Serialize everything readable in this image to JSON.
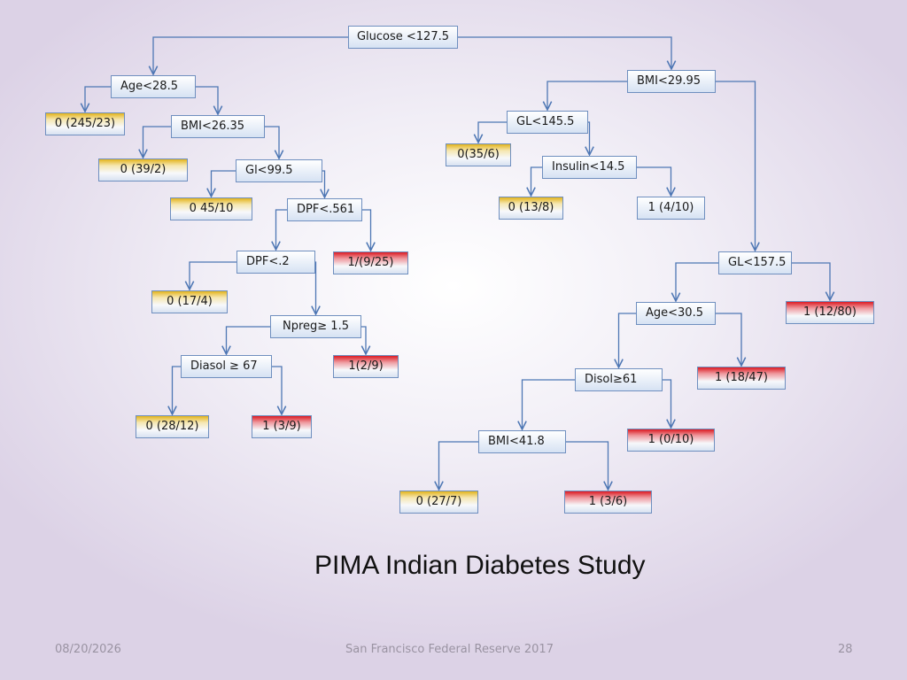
{
  "title": "PIMA Indian Diabetes Study",
  "footer": {
    "date": "08/20/2026",
    "center": "San Francisco Federal Reserve 2017",
    "page": "28"
  },
  "tree": {
    "nodes": [
      {
        "id": "glucose",
        "label": "Glucose <127.5",
        "kind": "split"
      },
      {
        "id": "age285",
        "label": "Age<28.5",
        "kind": "split"
      },
      {
        "id": "bmi2995",
        "label": "BMI<29.95",
        "kind": "split"
      },
      {
        "id": "leaf_245",
        "label": "0 (245/23)",
        "kind": "leaf",
        "class": "0"
      },
      {
        "id": "bmi2635",
        "label": "BMI<26.35",
        "kind": "split"
      },
      {
        "id": "gl1455",
        "label": "GL<145.5",
        "kind": "split"
      },
      {
        "id": "leaf_39",
        "label": "0 (39/2)",
        "kind": "leaf",
        "class": "0"
      },
      {
        "id": "gl995",
        "label": "Gl<99.5",
        "kind": "split"
      },
      {
        "id": "leaf_35",
        "label": "0(35/6)",
        "kind": "leaf",
        "class": "0"
      },
      {
        "id": "ins145",
        "label": "Insulin<14.5",
        "kind": "split"
      },
      {
        "id": "leaf_45",
        "label": "0 45/10",
        "kind": "leaf",
        "class": "0"
      },
      {
        "id": "dpf561",
        "label": "DPF<.561",
        "kind": "split"
      },
      {
        "id": "leaf_13",
        "label": "0 (13/8)",
        "kind": "leaf",
        "class": "0"
      },
      {
        "id": "leaf_4_10",
        "label": "1 (4/10)",
        "kind": "split"
      },
      {
        "id": "dpf2",
        "label": "DPF<.2",
        "kind": "split"
      },
      {
        "id": "leaf_9_25",
        "label": "1/(9/25)",
        "kind": "leaf",
        "class": "1"
      },
      {
        "id": "gl1575",
        "label": "GL<157.5",
        "kind": "split"
      },
      {
        "id": "leaf_17",
        "label": "0 (17/4)",
        "kind": "leaf",
        "class": "0"
      },
      {
        "id": "age305",
        "label": "Age<30.5",
        "kind": "split"
      },
      {
        "id": "leaf_12_80",
        "label": "1 (12/80)",
        "kind": "leaf",
        "class": "1"
      },
      {
        "id": "npreg",
        "label": "Npreg≥ 1.5",
        "kind": "split"
      },
      {
        "id": "diasol67",
        "label": "Diasol ≥ 67",
        "kind": "split"
      },
      {
        "id": "leaf_2_9",
        "label": "1(2/9)",
        "kind": "leaf",
        "class": "1"
      },
      {
        "id": "disol61",
        "label": "Disol≥61",
        "kind": "split"
      },
      {
        "id": "leaf_18_47",
        "label": "1 (18/47)",
        "kind": "leaf",
        "class": "1"
      },
      {
        "id": "leaf_28",
        "label": "0 (28/12)",
        "kind": "leaf",
        "class": "0"
      },
      {
        "id": "leaf_3_9",
        "label": "1 (3/9)",
        "kind": "leaf",
        "class": "1"
      },
      {
        "id": "bmi418",
        "label": "BMI<41.8",
        "kind": "split"
      },
      {
        "id": "leaf_0_10",
        "label": "1 (0/10)",
        "kind": "leaf",
        "class": "1"
      },
      {
        "id": "leaf_27",
        "label": "0 (27/7)",
        "kind": "leaf",
        "class": "0"
      },
      {
        "id": "leaf_3_6",
        "label": "1 (3/6)",
        "kind": "leaf",
        "class": "1"
      }
    ],
    "edges": [
      [
        "glucose",
        "age285"
      ],
      [
        "glucose",
        "bmi2995"
      ],
      [
        "age285",
        "leaf_245"
      ],
      [
        "age285",
        "bmi2635"
      ],
      [
        "bmi2635",
        "leaf_39"
      ],
      [
        "bmi2635",
        "gl995"
      ],
      [
        "gl995",
        "leaf_45"
      ],
      [
        "gl995",
        "dpf561"
      ],
      [
        "dpf561",
        "dpf2"
      ],
      [
        "dpf561",
        "leaf_9_25"
      ],
      [
        "dpf2",
        "leaf_17"
      ],
      [
        "dpf2",
        "npreg"
      ],
      [
        "npreg",
        "diasol67"
      ],
      [
        "npreg",
        "leaf_2_9"
      ],
      [
        "diasol67",
        "leaf_28"
      ],
      [
        "diasol67",
        "leaf_3_9"
      ],
      [
        "bmi2995",
        "gl1455"
      ],
      [
        "bmi2995",
        "gl1575"
      ],
      [
        "gl1455",
        "leaf_35"
      ],
      [
        "gl1455",
        "ins145"
      ],
      [
        "ins145",
        "leaf_13"
      ],
      [
        "ins145",
        "leaf_4_10"
      ],
      [
        "gl1575",
        "age305"
      ],
      [
        "gl1575",
        "leaf_12_80"
      ],
      [
        "age305",
        "disol61"
      ],
      [
        "age305",
        "leaf_18_47"
      ],
      [
        "disol61",
        "bmi418"
      ],
      [
        "disol61",
        "leaf_0_10"
      ],
      [
        "bmi418",
        "leaf_27"
      ],
      [
        "bmi418",
        "leaf_3_6"
      ]
    ]
  }
}
